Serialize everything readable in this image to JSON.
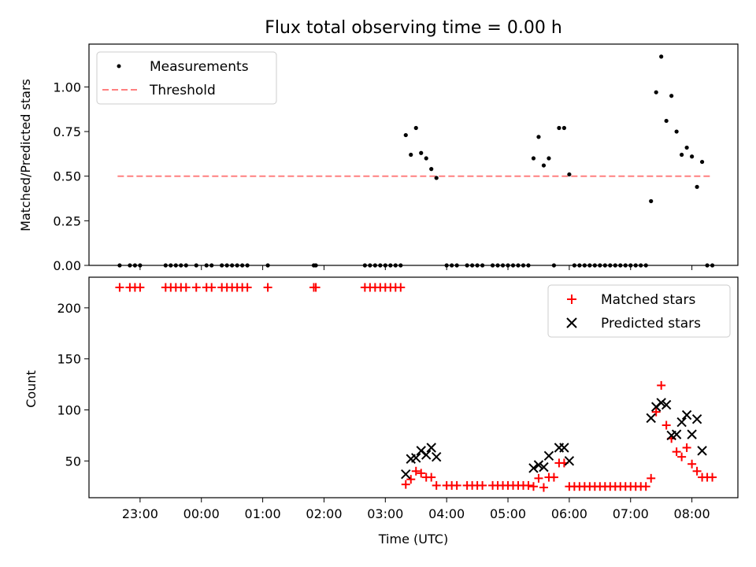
{
  "chart_data": [
    {
      "type": "scatter",
      "title": "Flux total observing time = 0.00 h",
      "ylabel": "Matched/Predicted stars",
      "ylim": [
        0,
        1.24
      ],
      "yticks": [
        "0.00",
        "0.25",
        "0.50",
        "0.75",
        "1.00"
      ],
      "yvals": [
        0,
        0.25,
        0.5,
        0.75,
        1.0
      ],
      "legend": {
        "loc": "upper-left",
        "entries": [
          "Measurements",
          "Threshold"
        ]
      },
      "threshold": {
        "name": "Threshold",
        "value": 0.5,
        "x_start": "22:38",
        "x_end": "08:18",
        "color": "#ff8080"
      },
      "series": [
        {
          "name": "Measurements",
          "color": "#000000",
          "points": [
            [
              "22:40",
              0
            ],
            [
              "22:50",
              0
            ],
            [
              "22:55",
              0
            ],
            [
              "23:00",
              0
            ],
            [
              "23:25",
              0
            ],
            [
              "23:30",
              0
            ],
            [
              "23:35",
              0
            ],
            [
              "23:40",
              0
            ],
            [
              "23:45",
              0
            ],
            [
              "23:55",
              0
            ],
            [
              "00:05",
              0
            ],
            [
              "00:10",
              0
            ],
            [
              "00:20",
              0
            ],
            [
              "00:25",
              0
            ],
            [
              "00:30",
              0
            ],
            [
              "00:35",
              0
            ],
            [
              "00:40",
              0
            ],
            [
              "00:45",
              0
            ],
            [
              "01:05",
              0
            ],
            [
              "01:50",
              0
            ],
            [
              "01:52",
              0
            ],
            [
              "02:40",
              0
            ],
            [
              "02:45",
              0
            ],
            [
              "02:50",
              0
            ],
            [
              "02:55",
              0
            ],
            [
              "03:00",
              0
            ],
            [
              "03:05",
              0
            ],
            [
              "03:10",
              0
            ],
            [
              "03:15",
              0
            ],
            [
              "03:20",
              0.73
            ],
            [
              "03:25",
              0.62
            ],
            [
              "03:30",
              0.77
            ],
            [
              "03:35",
              0.63
            ],
            [
              "03:40",
              0.6
            ],
            [
              "03:45",
              0.54
            ],
            [
              "03:50",
              0.49
            ],
            [
              "04:00",
              0
            ],
            [
              "04:05",
              0
            ],
            [
              "04:10",
              0
            ],
            [
              "04:20",
              0
            ],
            [
              "04:25",
              0
            ],
            [
              "04:30",
              0
            ],
            [
              "04:35",
              0
            ],
            [
              "04:45",
              0
            ],
            [
              "04:50",
              0
            ],
            [
              "04:55",
              0
            ],
            [
              "05:00",
              0
            ],
            [
              "05:05",
              0
            ],
            [
              "05:10",
              0
            ],
            [
              "05:15",
              0
            ],
            [
              "05:20",
              0
            ],
            [
              "05:25",
              0.6
            ],
            [
              "05:30",
              0.72
            ],
            [
              "05:35",
              0.56
            ],
            [
              "05:40",
              0.6
            ],
            [
              "05:45",
              0
            ],
            [
              "05:50",
              0.77
            ],
            [
              "05:55",
              0.77
            ],
            [
              "06:00",
              0.51
            ],
            [
              "06:05",
              0
            ],
            [
              "06:10",
              0
            ],
            [
              "06:15",
              0
            ],
            [
              "06:20",
              0
            ],
            [
              "06:25",
              0
            ],
            [
              "06:30",
              0
            ],
            [
              "06:35",
              0
            ],
            [
              "06:40",
              0
            ],
            [
              "06:45",
              0
            ],
            [
              "06:50",
              0
            ],
            [
              "06:55",
              0
            ],
            [
              "07:00",
              0
            ],
            [
              "07:05",
              0
            ],
            [
              "07:10",
              0
            ],
            [
              "07:15",
              0
            ],
            [
              "07:20",
              0.36
            ],
            [
              "07:25",
              0.97
            ],
            [
              "07:30",
              1.17
            ],
            [
              "07:35",
              0.81
            ],
            [
              "07:40",
              0.95
            ],
            [
              "07:45",
              0.75
            ],
            [
              "07:50",
              0.62
            ],
            [
              "07:55",
              0.66
            ],
            [
              "08:00",
              0.61
            ],
            [
              "08:05",
              0.44
            ],
            [
              "08:10",
              0.58
            ],
            [
              "08:15",
              0
            ],
            [
              "08:20",
              0
            ]
          ]
        }
      ]
    },
    {
      "type": "scatter",
      "xlabel": "Time (UTC)",
      "ylabel": "Count",
      "ylim": [
        14,
        230
      ],
      "yticks": [
        "50",
        "100",
        "150",
        "200"
      ],
      "yvals": [
        50,
        100,
        150,
        200
      ],
      "xlim": [
        "22:10",
        "08:45"
      ],
      "xticks": [
        "23:00",
        "00:00",
        "01:00",
        "02:00",
        "03:00",
        "04:00",
        "05:00",
        "06:00",
        "07:00",
        "08:00"
      ],
      "legend": {
        "loc": "upper-right",
        "entries": [
          "Matched stars",
          "Predicted stars"
        ]
      },
      "series": [
        {
          "name": "Matched stars",
          "color": "#ff0000",
          "marker": "plus",
          "points": [
            [
              "22:40",
              220
            ],
            [
              "22:50",
              220
            ],
            [
              "22:55",
              220
            ],
            [
              "23:00",
              220
            ],
            [
              "23:25",
              220
            ],
            [
              "23:30",
              220
            ],
            [
              "23:35",
              220
            ],
            [
              "23:40",
              220
            ],
            [
              "23:45",
              220
            ],
            [
              "23:55",
              220
            ],
            [
              "00:05",
              220
            ],
            [
              "00:10",
              220
            ],
            [
              "00:20",
              220
            ],
            [
              "00:25",
              220
            ],
            [
              "00:30",
              220
            ],
            [
              "00:35",
              220
            ],
            [
              "00:40",
              220
            ],
            [
              "00:45",
              220
            ],
            [
              "01:05",
              220
            ],
            [
              "01:50",
              220
            ],
            [
              "01:52",
              220
            ],
            [
              "02:40",
              220
            ],
            [
              "02:45",
              220
            ],
            [
              "02:50",
              220
            ],
            [
              "02:55",
              220
            ],
            [
              "03:00",
              220
            ],
            [
              "03:05",
              220
            ],
            [
              "03:10",
              220
            ],
            [
              "03:15",
              220
            ],
            [
              "03:20",
              27
            ],
            [
              "03:25",
              32
            ],
            [
              "03:30",
              40
            ],
            [
              "03:35",
              38
            ],
            [
              "03:40",
              34
            ],
            [
              "03:45",
              34
            ],
            [
              "03:50",
              26
            ],
            [
              "04:00",
              26
            ],
            [
              "04:05",
              26
            ],
            [
              "04:10",
              26
            ],
            [
              "04:20",
              26
            ],
            [
              "04:25",
              26
            ],
            [
              "04:30",
              26
            ],
            [
              "04:35",
              26
            ],
            [
              "04:45",
              26
            ],
            [
              "04:50",
              26
            ],
            [
              "04:55",
              26
            ],
            [
              "05:00",
              26
            ],
            [
              "05:05",
              26
            ],
            [
              "05:10",
              26
            ],
            [
              "05:15",
              26
            ],
            [
              "05:20",
              26
            ],
            [
              "05:25",
              25
            ],
            [
              "05:30",
              33
            ],
            [
              "05:35",
              24
            ],
            [
              "05:40",
              34
            ],
            [
              "05:45",
              34
            ],
            [
              "05:50",
              48
            ],
            [
              "05:55",
              48
            ],
            [
              "06:00",
              25
            ],
            [
              "06:05",
              25
            ],
            [
              "06:10",
              25
            ],
            [
              "06:15",
              25
            ],
            [
              "06:20",
              25
            ],
            [
              "06:25",
              25
            ],
            [
              "06:30",
              25
            ],
            [
              "06:35",
              25
            ],
            [
              "06:40",
              25
            ],
            [
              "06:45",
              25
            ],
            [
              "06:50",
              25
            ],
            [
              "06:55",
              25
            ],
            [
              "07:00",
              25
            ],
            [
              "07:05",
              25
            ],
            [
              "07:10",
              25
            ],
            [
              "07:15",
              25
            ],
            [
              "07:20",
              33
            ],
            [
              "07:25",
              98
            ],
            [
              "07:30",
              124
            ],
            [
              "07:35",
              85
            ],
            [
              "07:40",
              72
            ],
            [
              "07:45",
              59
            ],
            [
              "07:50",
              54
            ],
            [
              "07:55",
              63
            ],
            [
              "08:00",
              47
            ],
            [
              "08:05",
              40
            ],
            [
              "08:10",
              34
            ],
            [
              "08:15",
              34
            ],
            [
              "08:20",
              34
            ]
          ]
        },
        {
          "name": "Predicted stars",
          "color": "#000000",
          "marker": "x",
          "points": [
            [
              "03:20",
              37
            ],
            [
              "03:25",
              52
            ],
            [
              "03:30",
              53
            ],
            [
              "03:35",
              60
            ],
            [
              "03:40",
              56
            ],
            [
              "03:45",
              63
            ],
            [
              "03:50",
              54
            ],
            [
              "05:25",
              43
            ],
            [
              "05:30",
              46
            ],
            [
              "05:35",
              44
            ],
            [
              "05:40",
              55
            ],
            [
              "05:50",
              63
            ],
            [
              "05:55",
              63
            ],
            [
              "06:00",
              50
            ],
            [
              "07:20",
              92
            ],
            [
              "07:25",
              103
            ],
            [
              "07:30",
              107
            ],
            [
              "07:35",
              105
            ],
            [
              "07:40",
              75
            ],
            [
              "07:45",
              76
            ],
            [
              "07:50",
              88
            ],
            [
              "07:55",
              95
            ],
            [
              "08:00",
              76
            ],
            [
              "08:05",
              91
            ],
            [
              "08:10",
              60
            ]
          ]
        }
      ]
    }
  ]
}
